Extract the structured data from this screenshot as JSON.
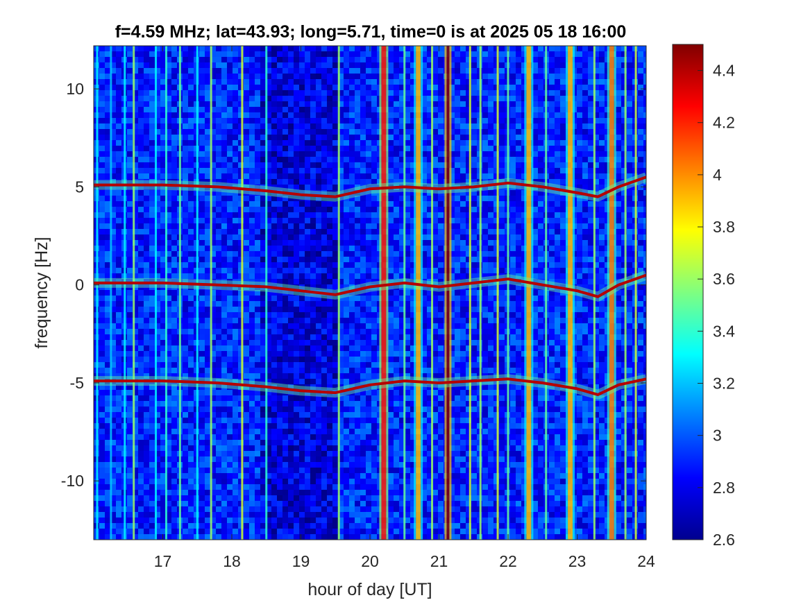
{
  "chart_data": {
    "type": "heatmap",
    "title": "f=4.59 MHz;  lat=43.93; long=5.71, time=0 is at 2025 05 18 16:00",
    "xlabel": "hour of day [UT]",
    "ylabel": "frequency [Hz]",
    "xlim": [
      16,
      24
    ],
    "ylim": [
      -13,
      12.2
    ],
    "x_ticks": [
      17,
      18,
      19,
      20,
      21,
      22,
      23,
      24
    ],
    "x_tick_labels": [
      "17",
      "18",
      "19",
      "20",
      "21",
      "22",
      "23",
      "24"
    ],
    "y_ticks": [
      10,
      5,
      0,
      -5,
      -10
    ],
    "y_tick_labels": [
      "10",
      "5",
      "0",
      "-5",
      "-10"
    ],
    "colorbar": {
      "colormap": "jet",
      "range": [
        2.6,
        4.5
      ],
      "ticks": [
        4.4,
        4.2,
        4,
        3.8,
        3.6,
        3.4,
        3.2,
        3,
        2.8,
        2.6
      ],
      "tick_labels": [
        "4.4",
        "4.2",
        "4",
        "3.8",
        "3.6",
        "3.4",
        "3.2",
        "3",
        "2.8",
        "2.6"
      ]
    },
    "background_level": 2.9,
    "doppler_traces": [
      {
        "offset_hz": 5,
        "points": [
          [
            16.0,
            5.1
          ],
          [
            17.0,
            5.1
          ],
          [
            17.8,
            5.0
          ],
          [
            18.5,
            4.8
          ],
          [
            19.0,
            4.6
          ],
          [
            19.5,
            4.5
          ],
          [
            20.0,
            4.9
          ],
          [
            20.5,
            5.0
          ],
          [
            21.0,
            4.9
          ],
          [
            21.5,
            5.0
          ],
          [
            22.0,
            5.2
          ],
          [
            22.5,
            5.0
          ],
          [
            23.0,
            4.7
          ],
          [
            23.3,
            4.5
          ],
          [
            23.6,
            5.0
          ],
          [
            24.0,
            5.5
          ]
        ]
      },
      {
        "offset_hz": 0,
        "points": [
          [
            16.0,
            0.1
          ],
          [
            17.0,
            0.1
          ],
          [
            17.8,
            0.0
          ],
          [
            18.5,
            -0.1
          ],
          [
            19.0,
            -0.3
          ],
          [
            19.5,
            -0.5
          ],
          [
            20.0,
            -0.1
          ],
          [
            20.5,
            0.1
          ],
          [
            21.0,
            -0.1
          ],
          [
            21.5,
            0.1
          ],
          [
            22.0,
            0.3
          ],
          [
            22.5,
            0.0
          ],
          [
            23.0,
            -0.3
          ],
          [
            23.3,
            -0.6
          ],
          [
            23.6,
            0.0
          ],
          [
            24.0,
            0.5
          ]
        ]
      },
      {
        "offset_hz": -5,
        "points": [
          [
            16.0,
            -4.9
          ],
          [
            17.0,
            -4.9
          ],
          [
            17.8,
            -5.0
          ],
          [
            18.5,
            -5.2
          ],
          [
            19.0,
            -5.4
          ],
          [
            19.5,
            -5.5
          ],
          [
            20.0,
            -5.1
          ],
          [
            20.5,
            -4.9
          ],
          [
            21.0,
            -5.0
          ],
          [
            21.5,
            -4.9
          ],
          [
            22.0,
            -4.8
          ],
          [
            22.5,
            -5.0
          ],
          [
            23.0,
            -5.3
          ],
          [
            23.3,
            -5.6
          ],
          [
            23.6,
            -5.1
          ],
          [
            24.0,
            -4.8
          ]
        ]
      }
    ],
    "vertical_bands": [
      {
        "hour": 16.05,
        "level": 3.3
      },
      {
        "hour": 16.25,
        "level": 3.2
      },
      {
        "hour": 16.45,
        "level": 3.3
      },
      {
        "hour": 16.58,
        "level": 3.6
      },
      {
        "hour": 16.9,
        "level": 3.3
      },
      {
        "hour": 17.05,
        "level": 3.4
      },
      {
        "hour": 17.25,
        "level": 3.5
      },
      {
        "hour": 17.5,
        "level": 3.3
      },
      {
        "hour": 17.7,
        "level": 3.6
      },
      {
        "hour": 18.15,
        "level": 3.7
      },
      {
        "hour": 18.5,
        "level": 3.4
      },
      {
        "hour": 19.55,
        "level": 3.6
      },
      {
        "hour": 20.2,
        "level": 4.2
      },
      {
        "hour": 20.5,
        "level": 3.5
      },
      {
        "hour": 20.7,
        "level": 3.9
      },
      {
        "hour": 20.9,
        "level": 3.6
      },
      {
        "hour": 21.13,
        "level": 4.5
      },
      {
        "hour": 21.45,
        "level": 3.7
      },
      {
        "hour": 21.6,
        "level": 3.6
      },
      {
        "hour": 21.85,
        "level": 3.7
      },
      {
        "hour": 22.0,
        "level": 3.5
      },
      {
        "hour": 22.3,
        "level": 3.9
      },
      {
        "hour": 22.55,
        "level": 3.5
      },
      {
        "hour": 22.9,
        "level": 3.9
      },
      {
        "hour": 23.25,
        "level": 3.6
      },
      {
        "hour": 23.5,
        "level": 4.0
      },
      {
        "hour": 23.7,
        "level": 3.6
      },
      {
        "hour": 23.85,
        "level": 3.7
      }
    ]
  }
}
